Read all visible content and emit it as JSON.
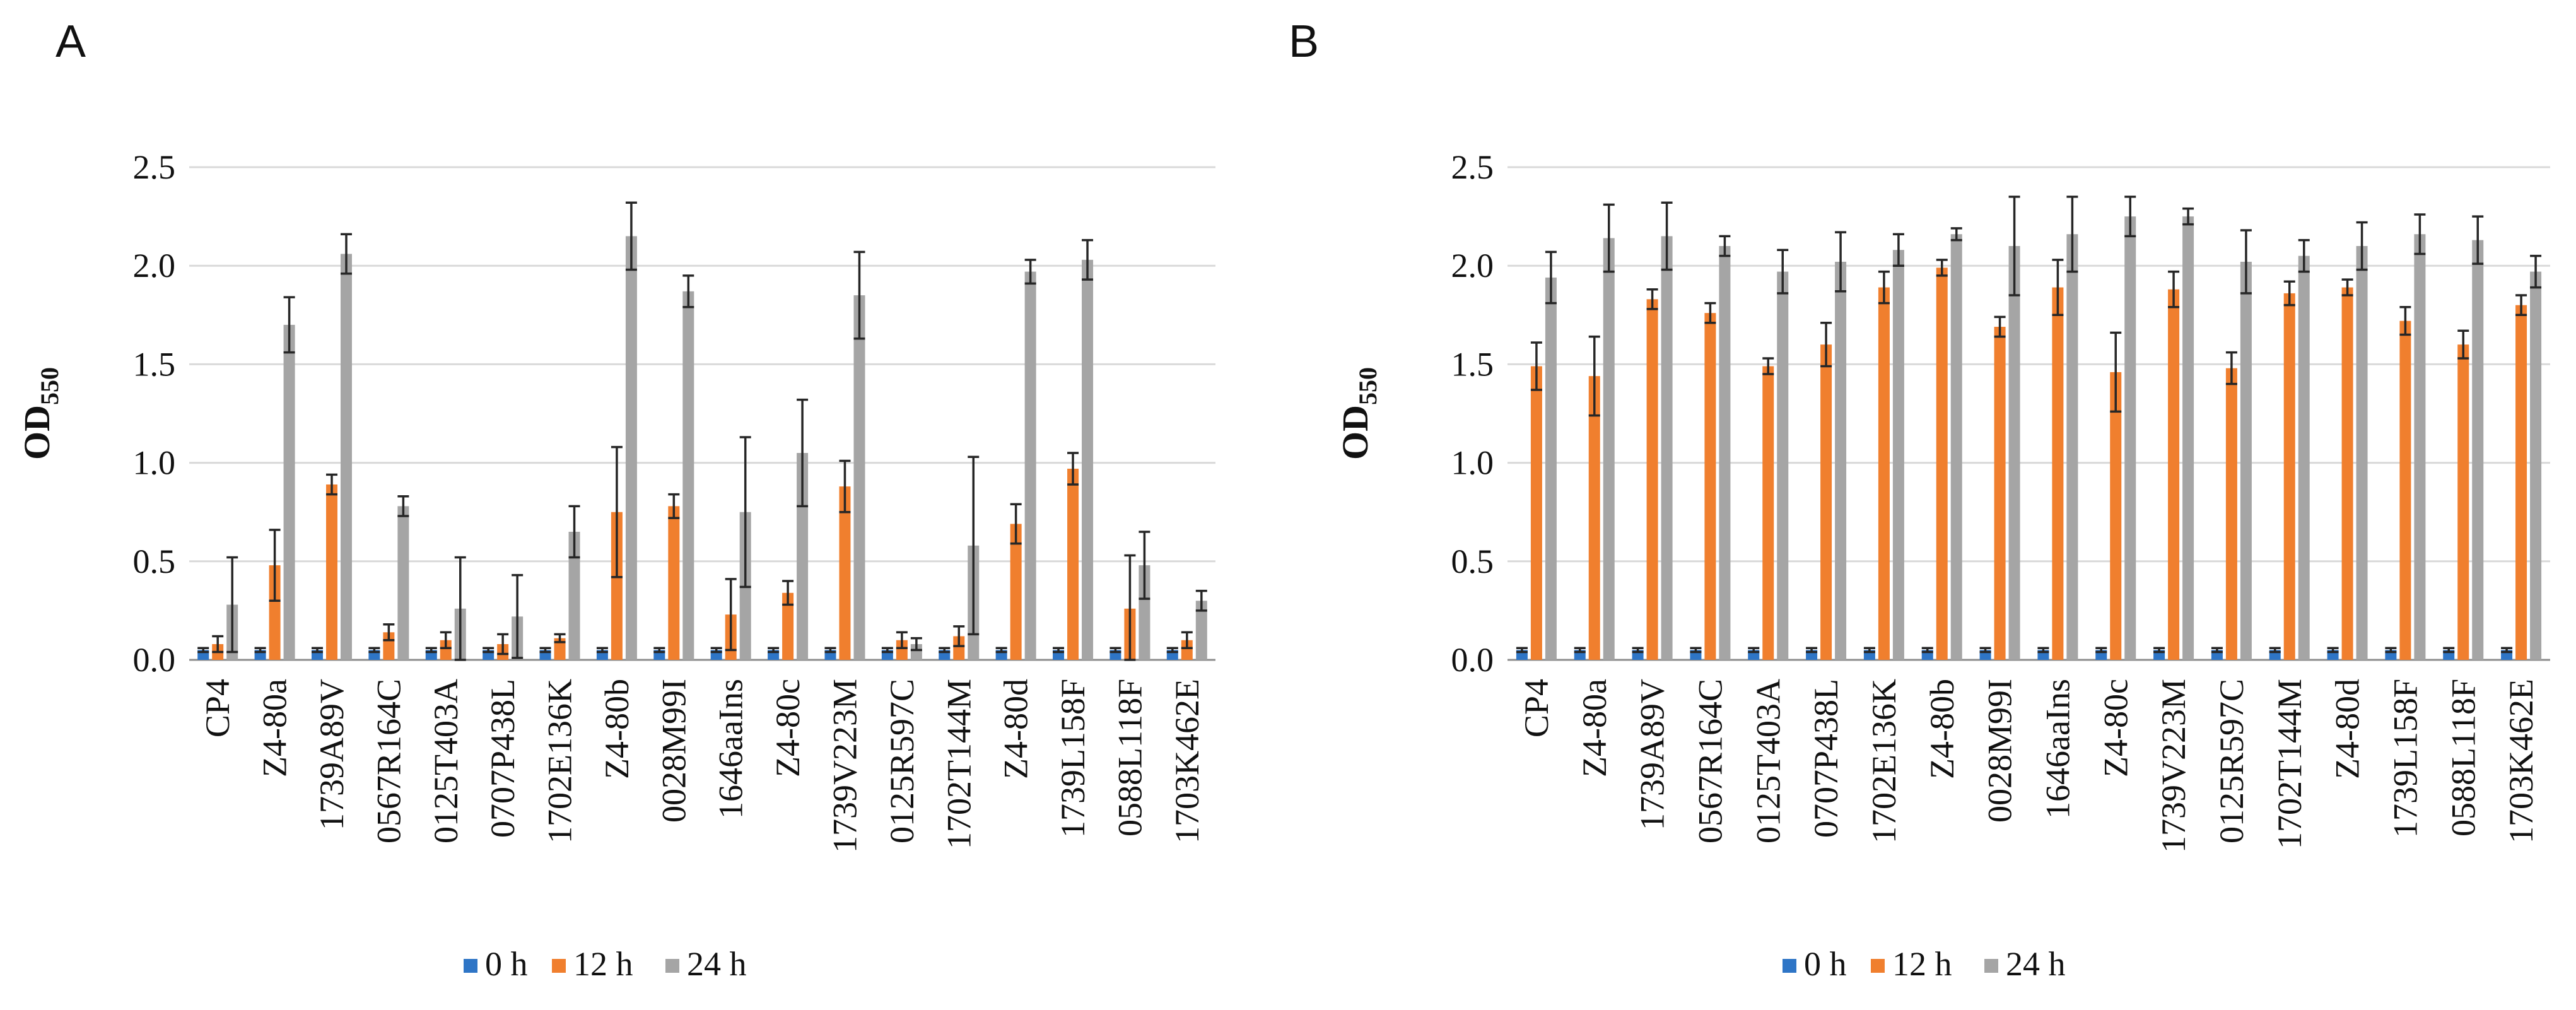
{
  "colors": {
    "h0": "#2E75C6",
    "h12": "#F07F2E",
    "h24": "#A5A5A5"
  },
  "chart_data": [
    {
      "panel": "A",
      "type": "bar",
      "ylabel": "OD",
      "ylabel_sub": "550",
      "ylim": [
        0,
        2.5
      ],
      "yticks": [
        "0.0",
        "0.5",
        "1.0",
        "1.5",
        "2.0",
        "2.5"
      ],
      "categories": [
        "CP4",
        "Z4-80a",
        "1739A89V",
        "0567R164C",
        "0125T403A",
        "0707P438L",
        "1702E136K",
        "Z4-80b",
        "0028M99I",
        "1646aaIns",
        "Z4-80c",
        "1739V223M",
        "0125R597C",
        "1702T144M",
        "Z4-80d",
        "1739L158F",
        "0588L118F",
        "1703K462E"
      ],
      "series": [
        {
          "name": "0 h",
          "values": [
            0.05,
            0.05,
            0.05,
            0.05,
            0.05,
            0.05,
            0.05,
            0.05,
            0.05,
            0.05,
            0.05,
            0.05,
            0.05,
            0.05,
            0.05,
            0.05,
            0.05,
            0.05
          ],
          "errors": [
            0.01,
            0.01,
            0.01,
            0.01,
            0.01,
            0.01,
            0.01,
            0.01,
            0.01,
            0.01,
            0.01,
            0.01,
            0.01,
            0.01,
            0.01,
            0.01,
            0.01,
            0.01
          ]
        },
        {
          "name": "12 h",
          "values": [
            0.08,
            0.48,
            0.89,
            0.14,
            0.1,
            0.08,
            0.11,
            0.75,
            0.78,
            0.23,
            0.34,
            0.88,
            0.1,
            0.12,
            0.69,
            0.97,
            0.26,
            0.1
          ],
          "errors": [
            0.04,
            0.18,
            0.05,
            0.04,
            0.04,
            0.05,
            0.02,
            0.33,
            0.06,
            0.18,
            0.06,
            0.13,
            0.04,
            0.05,
            0.1,
            0.08,
            0.27,
            0.04
          ]
        },
        {
          "name": "24 h",
          "values": [
            0.28,
            1.7,
            2.06,
            0.78,
            0.26,
            0.22,
            0.65,
            2.15,
            1.87,
            0.75,
            1.05,
            1.85,
            0.08,
            0.58,
            1.97,
            2.03,
            0.48,
            0.3
          ],
          "errors": [
            0.24,
            0.14,
            0.1,
            0.05,
            0.26,
            0.21,
            0.13,
            0.17,
            0.08,
            0.38,
            0.27,
            0.22,
            0.03,
            0.45,
            0.06,
            0.1,
            0.17,
            0.05
          ]
        }
      ],
      "legend": [
        "0 h",
        "12 h",
        "24 h"
      ]
    },
    {
      "panel": "B",
      "type": "bar",
      "ylabel": "OD",
      "ylabel_sub": "550",
      "ylim": [
        0,
        2.5
      ],
      "yticks": [
        "0.0",
        "0.5",
        "1.0",
        "1.5",
        "2.0",
        "2.5"
      ],
      "categories": [
        "CP4",
        "Z4-80a",
        "1739A89V",
        "0567R164C",
        "0125T403A",
        "0707P438L",
        "1702E136K",
        "Z4-80b",
        "0028M99I",
        "1646aaIns",
        "Z4-80c",
        "1739V223M",
        "0125R597C",
        "1702T144M",
        "Z4-80d",
        "1739L158F",
        "0588L118F",
        "1703K462E"
      ],
      "series": [
        {
          "name": "0 h",
          "values": [
            0.05,
            0.05,
            0.05,
            0.05,
            0.05,
            0.05,
            0.05,
            0.05,
            0.05,
            0.05,
            0.05,
            0.05,
            0.05,
            0.05,
            0.05,
            0.05,
            0.05,
            0.05
          ],
          "errors": [
            0.01,
            0.01,
            0.01,
            0.01,
            0.01,
            0.01,
            0.01,
            0.01,
            0.01,
            0.01,
            0.01,
            0.01,
            0.01,
            0.01,
            0.01,
            0.01,
            0.01,
            0.01
          ]
        },
        {
          "name": "12 h",
          "values": [
            1.49,
            1.44,
            1.83,
            1.76,
            1.49,
            1.6,
            1.89,
            1.99,
            1.69,
            1.89,
            1.46,
            1.88,
            1.48,
            1.86,
            1.89,
            1.72,
            1.6,
            1.8
          ],
          "errors": [
            0.12,
            0.2,
            0.05,
            0.05,
            0.04,
            0.11,
            0.08,
            0.04,
            0.05,
            0.14,
            0.2,
            0.09,
            0.08,
            0.06,
            0.04,
            0.07,
            0.07,
            0.05
          ]
        },
        {
          "name": "24 h",
          "values": [
            1.94,
            2.14,
            2.15,
            2.1,
            1.97,
            2.02,
            2.08,
            2.16,
            2.1,
            2.16,
            2.25,
            2.25,
            2.02,
            2.05,
            2.1,
            2.16,
            2.13,
            1.97
          ],
          "errors": [
            0.13,
            0.17,
            0.17,
            0.05,
            0.11,
            0.15,
            0.08,
            0.03,
            0.25,
            0.19,
            0.1,
            0.04,
            0.16,
            0.08,
            0.12,
            0.1,
            0.12,
            0.08
          ]
        }
      ],
      "legend": [
        "0 h",
        "12 h",
        "24 h"
      ]
    }
  ]
}
